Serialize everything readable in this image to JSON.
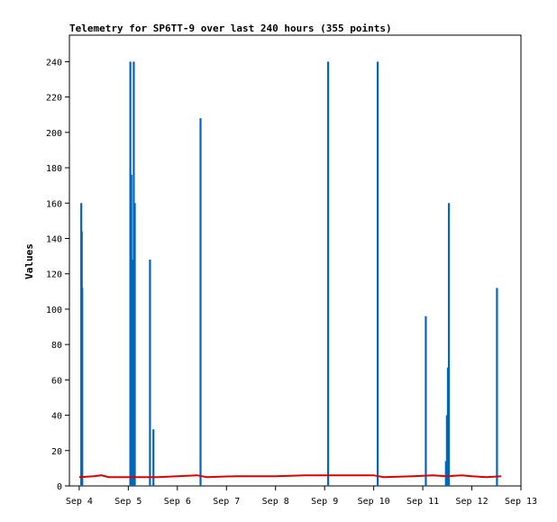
{
  "chart_data": {
    "type": "bar",
    "title": "Telemetry for SP6TT-9 over last 240 hours (355 points)",
    "xlabel": "",
    "ylabel": "Values",
    "x_ticks": [
      "Sep 4",
      "Sep 5",
      "Sep 6",
      "Sep 7",
      "Sep 8",
      "Sep 9",
      "Sep 10",
      "Sep 11",
      "Sep 12",
      "Sep 13"
    ],
    "y_ticks": [
      0,
      20,
      40,
      60,
      80,
      100,
      120,
      140,
      160,
      180,
      200,
      220,
      240
    ],
    "xlim": [
      -0.2,
      9.0
    ],
    "ylim": [
      0,
      255
    ],
    "grid": false,
    "legend": "none",
    "colors": {
      "bars": "#0066bb",
      "line": "#dd0000"
    },
    "series": [
      {
        "type": "bar",
        "points": [
          {
            "x": 0.04,
            "y": 160
          },
          {
            "x": 0.05,
            "y": 144
          },
          {
            "x": 0.06,
            "y": 112
          },
          {
            "x": 1.04,
            "y": 240
          },
          {
            "x": 1.06,
            "y": 176
          },
          {
            "x": 1.08,
            "y": 128
          },
          {
            "x": 1.11,
            "y": 240
          },
          {
            "x": 1.13,
            "y": 160
          },
          {
            "x": 1.44,
            "y": 128
          },
          {
            "x": 1.51,
            "y": 32
          },
          {
            "x": 2.47,
            "y": 208
          },
          {
            "x": 5.07,
            "y": 240
          },
          {
            "x": 6.08,
            "y": 240
          },
          {
            "x": 7.06,
            "y": 96
          },
          {
            "x": 7.47,
            "y": 14
          },
          {
            "x": 7.49,
            "y": 40
          },
          {
            "x": 7.51,
            "y": 67
          },
          {
            "x": 7.53,
            "y": 160
          },
          {
            "x": 8.51,
            "y": 112
          }
        ]
      },
      {
        "type": "line",
        "points": [
          {
            "x": 0.0,
            "y": 5.0
          },
          {
            "x": 0.3,
            "y": 5.5
          },
          {
            "x": 0.45,
            "y": 6.0
          },
          {
            "x": 0.6,
            "y": 5.0
          },
          {
            "x": 1.0,
            "y": 5.0
          },
          {
            "x": 1.6,
            "y": 5.0
          },
          {
            "x": 2.0,
            "y": 5.5
          },
          {
            "x": 2.4,
            "y": 6.0
          },
          {
            "x": 2.6,
            "y": 5.0
          },
          {
            "x": 3.2,
            "y": 5.5
          },
          {
            "x": 4.0,
            "y": 5.5
          },
          {
            "x": 4.6,
            "y": 6.0
          },
          {
            "x": 5.5,
            "y": 6.0
          },
          {
            "x": 6.0,
            "y": 6.0
          },
          {
            "x": 6.2,
            "y": 5.0
          },
          {
            "x": 6.8,
            "y": 5.5
          },
          {
            "x": 7.2,
            "y": 6.0
          },
          {
            "x": 7.5,
            "y": 5.5
          },
          {
            "x": 7.8,
            "y": 6.0
          },
          {
            "x": 8.0,
            "y": 5.5
          },
          {
            "x": 8.3,
            "y": 5.0
          },
          {
            "x": 8.6,
            "y": 5.5
          }
        ]
      }
    ]
  }
}
